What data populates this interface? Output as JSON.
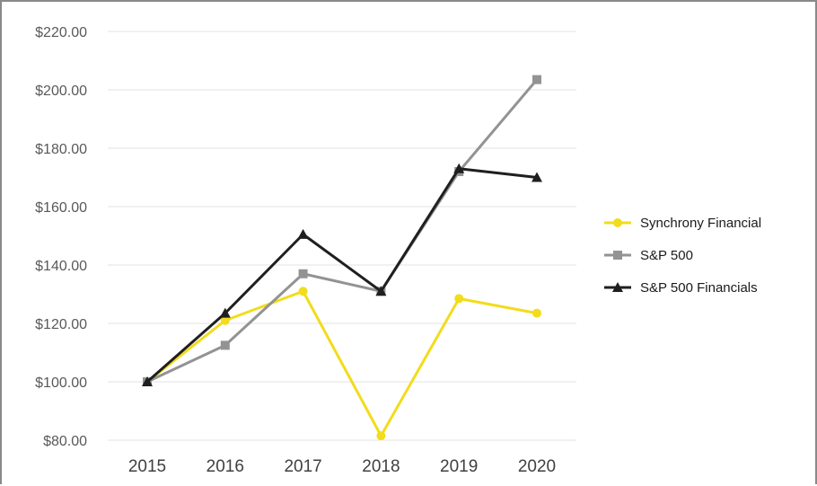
{
  "chart_data": {
    "type": "line",
    "x": [
      "2015",
      "2016",
      "2017",
      "2018",
      "2019",
      "2020"
    ],
    "ylim": [
      80,
      220
    ],
    "y_ticks": [
      "$80.00",
      "$100.00",
      "$120.00",
      "$140.00",
      "$160.00",
      "$180.00",
      "$200.00",
      "$220.00"
    ],
    "grid": true,
    "legend_position": "right",
    "series": [
      {
        "name": "Synchrony Financial",
        "color": "#f2dc1c",
        "marker": "circle",
        "values": [
          100,
          121,
          131,
          81.5,
          128.5,
          123.5
        ]
      },
      {
        "name": "S&P 500",
        "color": "#939393",
        "marker": "square",
        "values": [
          100,
          112.5,
          137,
          131,
          172,
          203.5
        ]
      },
      {
        "name": "S&P 500 Financials",
        "color": "#1f1f1f",
        "marker": "triangle",
        "values": [
          100,
          123.5,
          150.5,
          131,
          173,
          170
        ]
      }
    ]
  }
}
